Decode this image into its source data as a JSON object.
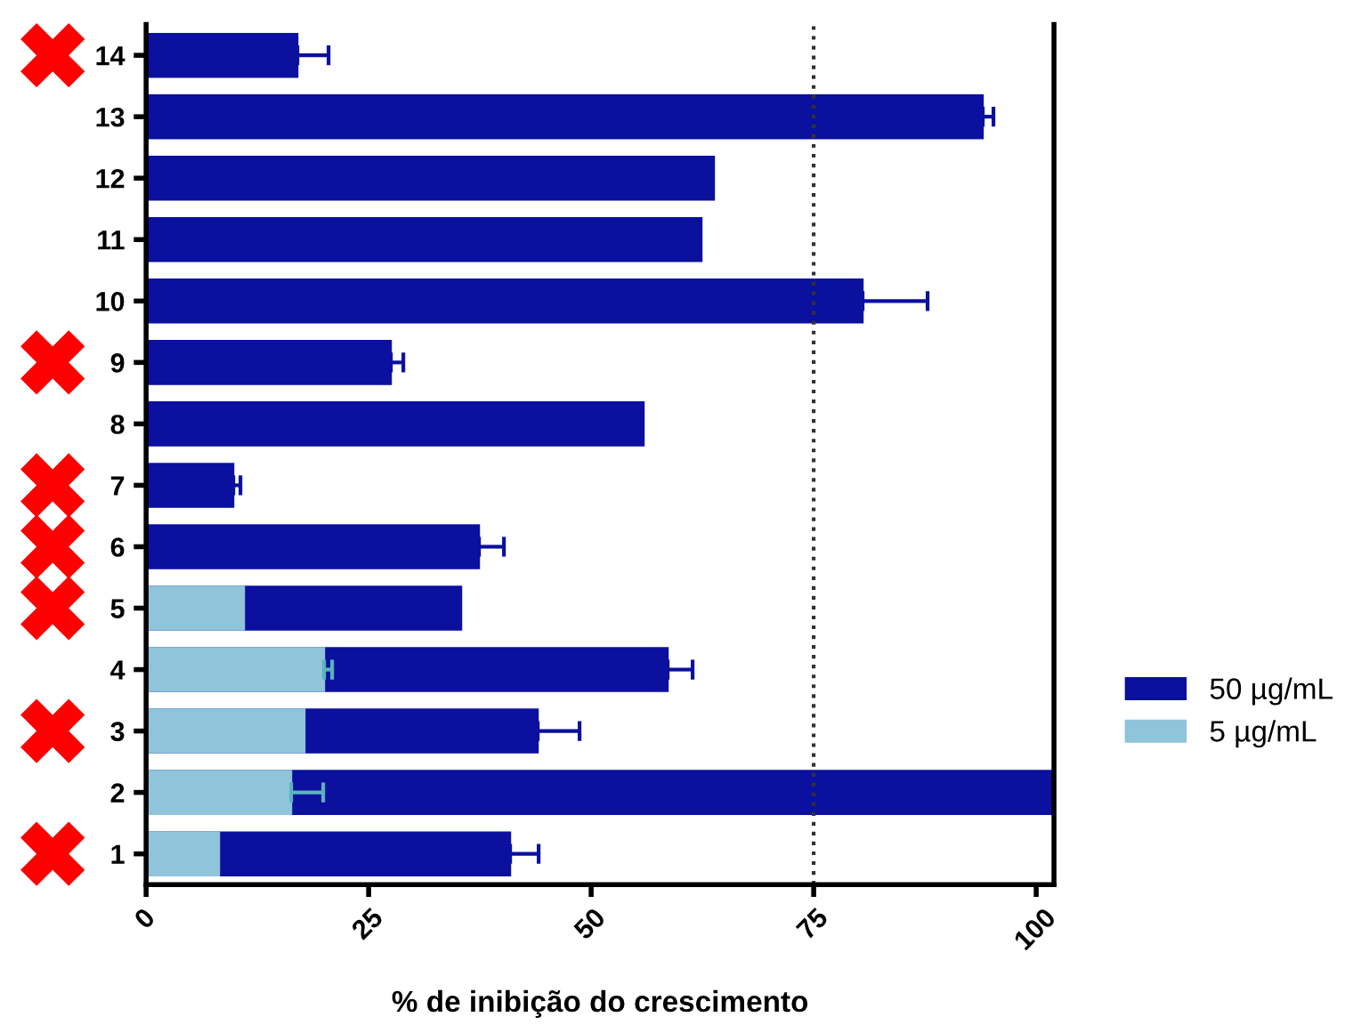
{
  "chart_data": {
    "type": "bar",
    "orientation": "horizontal",
    "xlabel": "% de inibição do crescimento",
    "categories": [
      "14",
      "13",
      "12",
      "11",
      "10",
      "9",
      "8",
      "7",
      "6",
      "5",
      "4",
      "3",
      "2",
      "1"
    ],
    "series": [
      {
        "name": "50 µg/mL",
        "color": "#0b109e",
        "values": [
          17.0,
          94.0,
          63.8,
          62.4,
          80.5,
          27.5,
          55.9,
          9.8,
          37.4,
          35.4,
          58.6,
          44.0,
          102,
          40.9
        ],
        "errors": [
          3.5,
          1.2,
          null,
          null,
          7.3,
          1.4,
          null,
          0.8,
          2.8,
          null,
          2.8,
          4.7,
          null,
          3.2
        ]
      },
      {
        "name": "5 µg/mL",
        "color": "#8fc4da",
        "values": [
          null,
          null,
          null,
          null,
          null,
          null,
          null,
          null,
          null,
          11.0,
          20.0,
          17.8,
          16.3,
          8.2
        ],
        "errors": [
          null,
          null,
          null,
          null,
          null,
          null,
          null,
          null,
          null,
          null,
          0.9,
          null,
          3.6,
          null
        ]
      }
    ],
    "xlim": [
      0,
      102
    ],
    "xticks": [
      0,
      25,
      50,
      75,
      100
    ],
    "ref_lines": [
      {
        "axis": "x",
        "value": 75,
        "line_style": "dotted",
        "color": "#333333"
      }
    ],
    "legend": "right",
    "grid": false
  }
}
